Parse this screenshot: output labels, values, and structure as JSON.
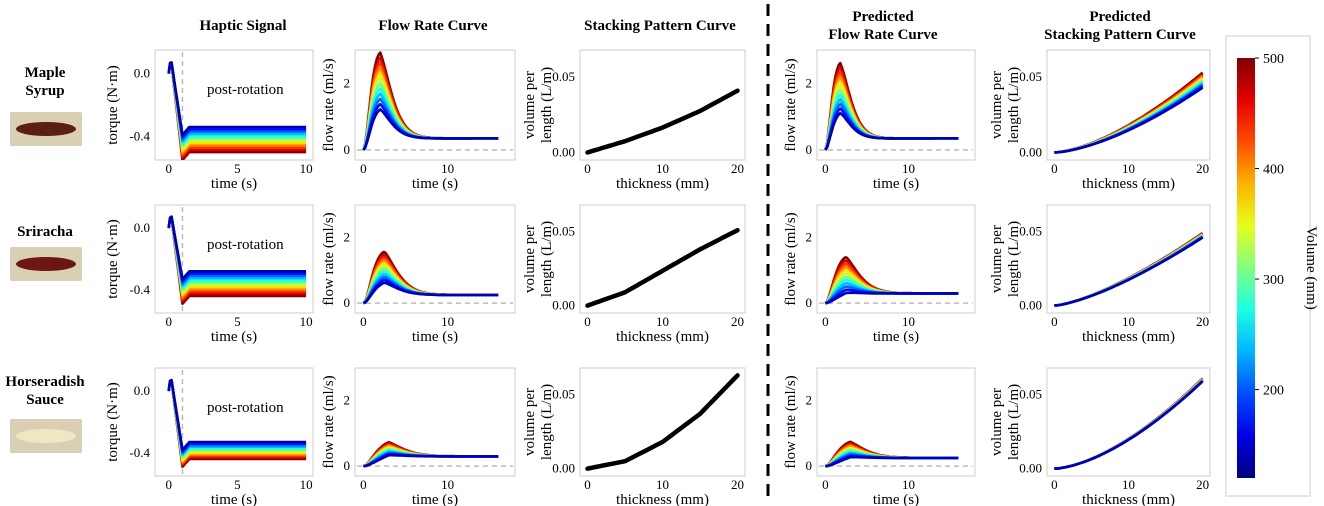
{
  "column_titles": [
    "Haptic Signal",
    "Flow Rate Curve",
    "Stacking Pattern Curve",
    "Predicted\nFlow Rate Curve",
    "Predicted\nStacking Pattern Curve"
  ],
  "rows": [
    {
      "label": "Maple\nSyrup",
      "sample_color": "#5a1f10",
      "tray_color": "#d9cfb4"
    },
    {
      "label": "Sriracha",
      "sample_color": "#6e1712",
      "tray_color": "#d9cfb4"
    },
    {
      "label": "Horseradish\nSauce",
      "sample_color": "#efe6c4",
      "tray_color": "#d9cfb4"
    }
  ],
  "colorbar": {
    "label": "Volume (mm)",
    "ticks": [
      "200",
      "300",
      "400",
      "500"
    ],
    "range": [
      120,
      500
    ],
    "colormap": "jet"
  },
  "colors": {
    "black_curve": "#000000",
    "dashed": "#bbbbbb",
    "divider": "#000000"
  },
  "chart_data": [
    {
      "id": "haptic",
      "type": "line",
      "xlabel": "time (s)",
      "ylabel": "torque (N·m)",
      "xlim": [
        -1,
        10.5
      ],
      "ylim": [
        -0.55,
        0.15
      ],
      "xticks": [
        "0",
        "5",
        "10"
      ],
      "yticks": [
        "0.0",
        "-0.4"
      ],
      "annotation": "post-rotation",
      "dashed_vline_x": 1,
      "rows": [
        {
          "plateau_range": [
            -0.34,
            -0.5
          ],
          "peak": 0.1
        },
        {
          "plateau_range": [
            -0.28,
            -0.44
          ],
          "peak": 0.1
        },
        {
          "plateau_range": [
            -0.33,
            -0.44
          ],
          "peak": 0.1
        }
      ]
    },
    {
      "id": "flow",
      "type": "line",
      "xlabel": "time (s)",
      "ylabel": "flow rate (ml/s)",
      "xlim": [
        -1,
        18
      ],
      "ylim": [
        -0.3,
        3.0
      ],
      "xticks": [
        "0",
        "10"
      ],
      "yticks": [
        "0",
        "2"
      ],
      "dashed_hline_y": 0,
      "rows": [
        {
          "peak_range": [
            1.0,
            2.7
          ],
          "tail": 0.35,
          "peak_t": 2.0
        },
        {
          "peak_range": [
            0.45,
            1.4
          ],
          "tail": 0.25,
          "peak_t": 2.5
        },
        {
          "peak_range": [
            0.1,
            0.5
          ],
          "tail": 0.3,
          "peak_t": 3.0
        }
      ]
    },
    {
      "id": "stack",
      "type": "line",
      "xlabel": "thickness (mm)",
      "ylabel": "volume per length (L/m)",
      "xlim": [
        -1,
        21
      ],
      "ylim": [
        -0.005,
        0.068
      ],
      "xticks": [
        "0",
        "10",
        "20"
      ],
      "yticks": [
        "0.00",
        "0.05"
      ],
      "rows": [
        {
          "x": [
            0,
            5,
            10,
            15,
            20
          ],
          "y": [
            0.0,
            0.0075,
            0.0165,
            0.0275,
            0.041
          ]
        },
        {
          "x": [
            0,
            5,
            10,
            15,
            20
          ],
          "y": [
            0.0,
            0.009,
            0.0235,
            0.038,
            0.051
          ]
        },
        {
          "x": [
            0,
            5,
            10,
            15,
            20
          ],
          "y": [
            0.0,
            0.005,
            0.018,
            0.037,
            0.063
          ]
        }
      ]
    },
    {
      "id": "pred_flow",
      "type": "line",
      "xlabel": "time (s)",
      "ylabel": "flow rate (ml/s)",
      "xlim": [
        -1,
        18
      ],
      "ylim": [
        -0.3,
        3.0
      ],
      "xticks": [
        "0",
        "10"
      ],
      "yticks": [
        "0",
        "2"
      ],
      "dashed_hline_y": 0,
      "rows": [
        {
          "peak_range": [
            0.9,
            2.4
          ],
          "tail": 0.35,
          "peak_t": 1.8
        },
        {
          "peak_range": [
            0.1,
            1.2
          ],
          "tail": 0.3,
          "peak_t": 2.5
        },
        {
          "peak_range": [
            0.08,
            0.55
          ],
          "tail": 0.25,
          "peak_t": 3.0
        }
      ]
    },
    {
      "id": "pred_stack",
      "type": "line",
      "xlabel": "thickness (mm)",
      "ylabel": "volume per length (L/m)",
      "xlim": [
        -1,
        21
      ],
      "ylim": [
        -0.005,
        0.068
      ],
      "xticks": [
        "0",
        "10",
        "20"
      ],
      "yticks": [
        "0.00",
        "0.05"
      ],
      "rows": [
        {
          "end_range": [
            0.043,
            0.053
          ],
          "exp": 1.55
        },
        {
          "end_range": [
            0.046,
            0.049
          ],
          "exp": 1.4
        },
        {
          "end_range": [
            0.059,
            0.061
          ],
          "exp": 1.6
        }
      ]
    }
  ]
}
